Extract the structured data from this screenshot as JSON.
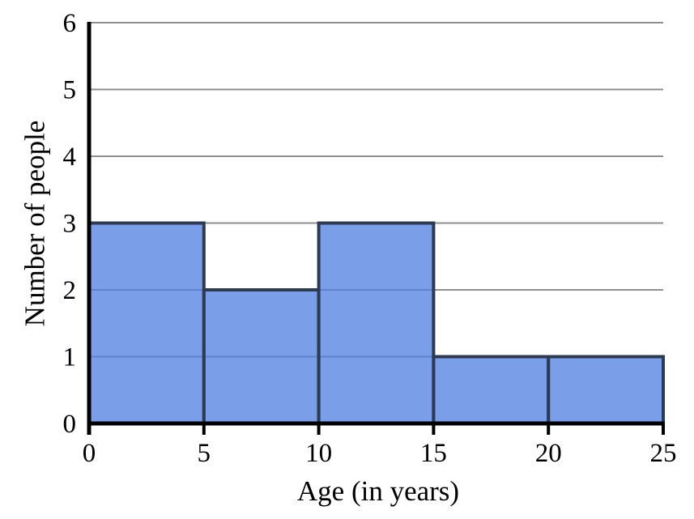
{
  "chart_data": {
    "type": "bar",
    "subtype": "histogram",
    "title": "",
    "xlabel": "Age (in years)",
    "ylabel": "Number of people",
    "bin_edges": [
      0,
      5,
      10,
      15,
      20,
      25
    ],
    "values": [
      3,
      2,
      3,
      1,
      1
    ],
    "categories": [
      "0-5",
      "5-10",
      "10-15",
      "15-20",
      "20-25"
    ],
    "xticks": [
      0,
      5,
      10,
      15,
      20,
      25
    ],
    "xtick_labels": [
      "0",
      "5",
      "10",
      "15",
      "20",
      "25"
    ],
    "yticks": [
      0,
      1,
      2,
      3,
      4,
      5,
      6
    ],
    "ytick_labels": [
      "0",
      "1",
      "2",
      "3",
      "4",
      "5",
      "6"
    ],
    "xlim": [
      0,
      25
    ],
    "ylim": [
      0,
      6
    ],
    "grid": "horizontal",
    "legend": "none",
    "colors": {
      "bar_fill": "#4F7DE0",
      "bar_fill_opacity": 0.75,
      "bar_stroke": "#2D3A52",
      "gridline": "#8F8F8F",
      "axis": "#000000",
      "text": "#000000",
      "background": "#FFFFFF"
    }
  }
}
